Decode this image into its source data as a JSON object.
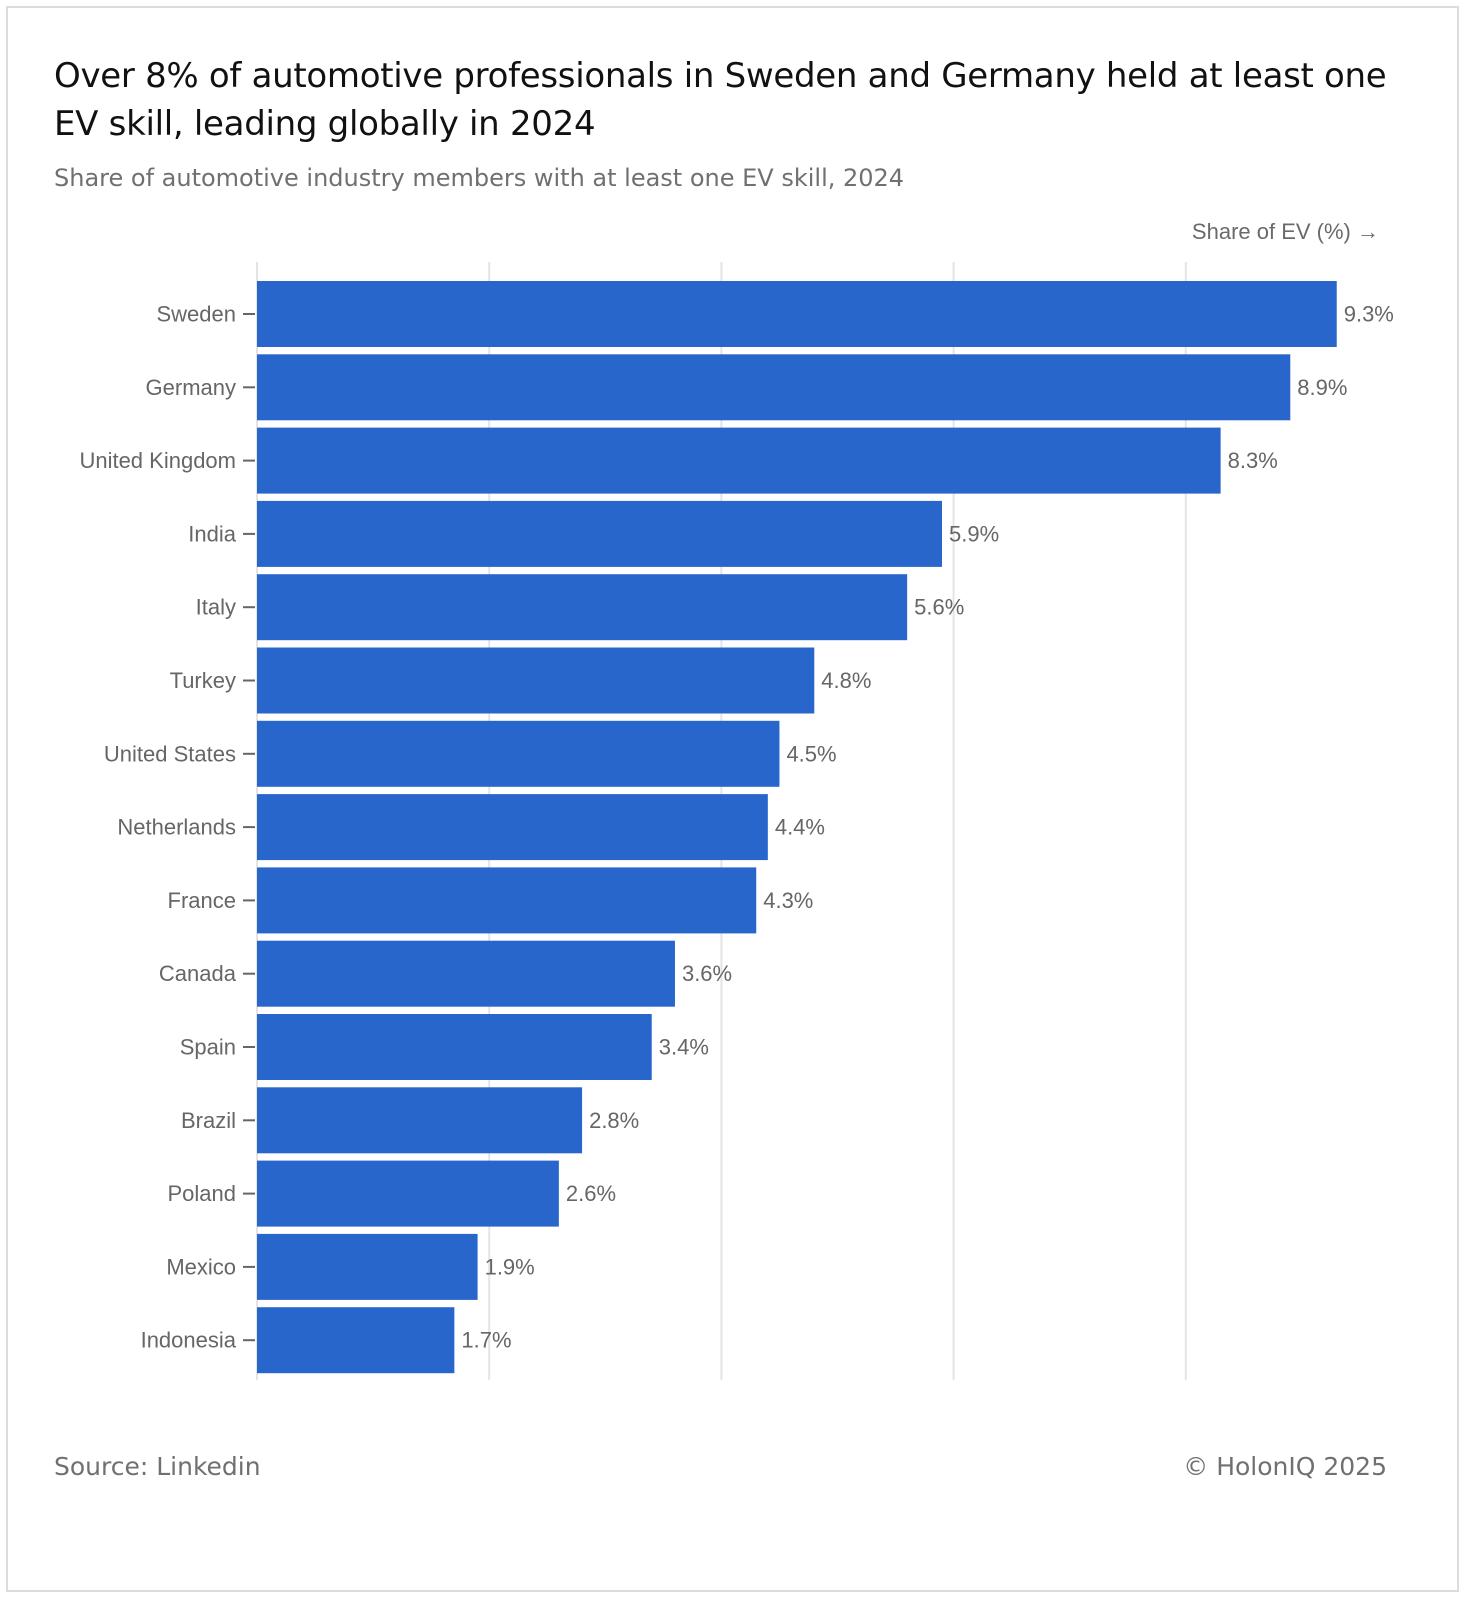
{
  "header": {
    "title": "Over 8% of automotive professionals in Sweden and Germany held at least one EV skill, leading globally in 2024",
    "subtitle": "Share of automotive industry members with at least one EV skill, 2024"
  },
  "footer": {
    "source": "Source: Linkedin",
    "copyright": "© HolonIQ 2025"
  },
  "colors": {
    "bar": "#2966CC",
    "grid": "#e4e4e4",
    "label": "#666666"
  },
  "chart_data": {
    "type": "bar",
    "orientation": "horizontal",
    "xlabel": "Share of EV (%) →",
    "ylabel": "",
    "xlim": [
      0,
      10
    ],
    "grid": true,
    "value_suffix": "%",
    "categories": [
      "Sweden",
      "Germany",
      "United Kingdom",
      "India",
      "Italy",
      "Turkey",
      "United States",
      "Netherlands",
      "France",
      "Canada",
      "Spain",
      "Brazil",
      "Poland",
      "Mexico",
      "Indonesia"
    ],
    "values": [
      9.3,
      8.9,
      8.3,
      5.9,
      5.6,
      4.8,
      4.5,
      4.4,
      4.3,
      3.6,
      3.4,
      2.8,
      2.6,
      1.9,
      1.7
    ],
    "value_labels": [
      "9.3%",
      "8.9%",
      "8.3%",
      "5.9%",
      "5.6%",
      "4.8%",
      "4.5%",
      "4.4%",
      "4.3%",
      "3.6%",
      "3.4%",
      "2.8%",
      "2.6%",
      "1.9%",
      "1.7%"
    ]
  }
}
